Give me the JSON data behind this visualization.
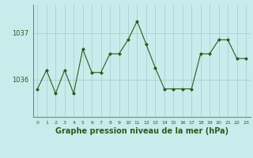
{
  "x": [
    0,
    1,
    2,
    3,
    4,
    5,
    6,
    7,
    8,
    9,
    10,
    11,
    12,
    13,
    14,
    15,
    16,
    17,
    18,
    19,
    20,
    21,
    22,
    23
  ],
  "y": [
    1035.8,
    1036.2,
    1035.7,
    1036.2,
    1035.7,
    1036.65,
    1036.15,
    1036.15,
    1036.55,
    1036.55,
    1036.85,
    1037.25,
    1036.75,
    1036.25,
    1035.8,
    1035.8,
    1035.8,
    1035.8,
    1036.55,
    1036.55,
    1036.85,
    1036.85,
    1036.45,
    1036.45
  ],
  "line_color": "#2d5a1b",
  "marker": "D",
  "marker_size": 2,
  "background_color": "#c8ecec",
  "plot_bg_color": "#c8ecec",
  "grid_color": "#a0cccc",
  "xlabel": "Graphe pression niveau de la mer (hPa)",
  "xlabel_fontsize": 7,
  "tick_labels": [
    "0",
    "1",
    "2",
    "3",
    "4",
    "5",
    "6",
    "7",
    "8",
    "9",
    "10",
    "11",
    "12",
    "13",
    "14",
    "15",
    "16",
    "17",
    "18",
    "19",
    "20",
    "21",
    "22",
    "23"
  ],
  "ytick_labels": [
    "1036",
    "1037"
  ],
  "ytick_values": [
    1036,
    1037
  ],
  "ylim": [
    1035.2,
    1037.6
  ],
  "xlim": [
    -0.5,
    23.5
  ],
  "left_spine_color": "#808080",
  "bottom_spine_color": "#808080"
}
